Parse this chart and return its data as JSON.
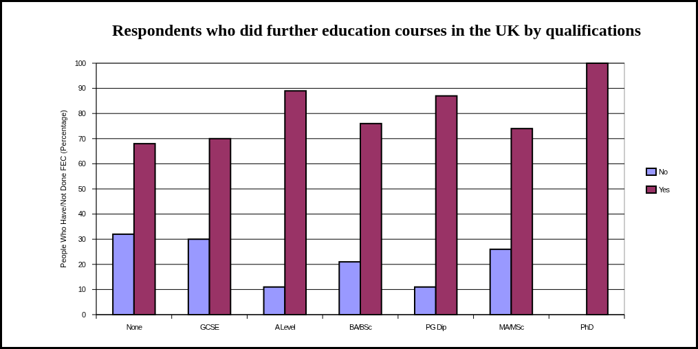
{
  "chart_data": {
    "type": "bar",
    "title": "Respondents who did further education courses in the UK by qualifications",
    "ylabel": "People Who Have/Not Done FEC (Percentage)",
    "categories": [
      "None",
      "GCSE",
      "A Level",
      "BA/BSc",
      "PG Dip",
      "MA/MSc",
      "PhD"
    ],
    "series": [
      {
        "name": "No",
        "color": "#9999ff",
        "values": [
          32,
          30,
          11,
          21,
          11,
          26,
          0
        ]
      },
      {
        "name": "Yes",
        "color": "#993366",
        "values": [
          68,
          70,
          89,
          76,
          87,
          74,
          100
        ]
      }
    ],
    "ylim": [
      0,
      100
    ],
    "yticks": [
      0,
      10,
      20,
      30,
      40,
      50,
      60,
      70,
      80,
      90,
      100
    ],
    "grid": "y",
    "legend": "right"
  }
}
